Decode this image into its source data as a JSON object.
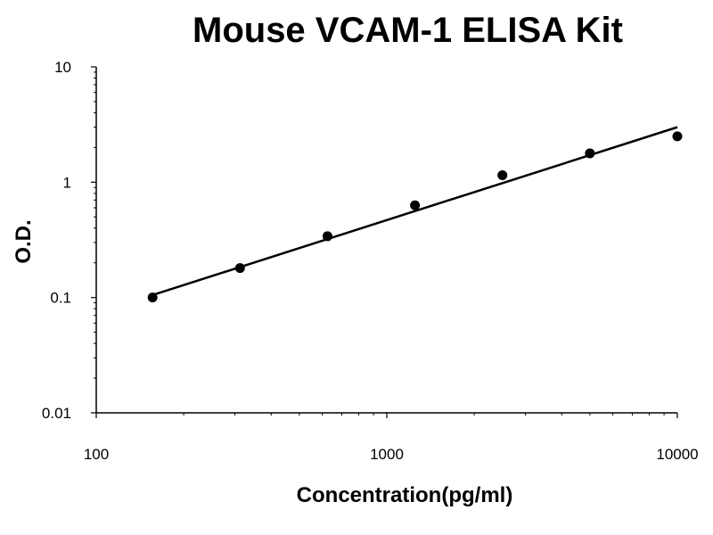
{
  "chart_data": {
    "type": "scatter",
    "title": "Mouse VCAM-1 ELISA Kit",
    "xlabel": "Concentration(pg/ml)",
    "ylabel": "O.D.",
    "x_scale": "log",
    "y_scale": "log",
    "xlim": [
      100,
      10000
    ],
    "ylim": [
      0.01,
      10
    ],
    "x_ticks": [
      "100",
      "1000",
      "10000"
    ],
    "y_ticks": [
      "0.01",
      "0.1",
      "1",
      "10"
    ],
    "grid": false,
    "series": [
      {
        "type": "scatter",
        "x": [
          156.25,
          312.5,
          625,
          1250,
          2500,
          5000,
          10000
        ],
        "y": [
          0.1,
          0.18,
          0.34,
          0.63,
          1.15,
          1.78,
          2.5
        ]
      }
    ],
    "trendline": {
      "type": "power",
      "from": [
        156,
        0.105
      ],
      "to": [
        10000,
        3.0
      ]
    },
    "colors": {
      "marks": "#000000",
      "axes": "#000000",
      "background": "#ffffff"
    }
  }
}
